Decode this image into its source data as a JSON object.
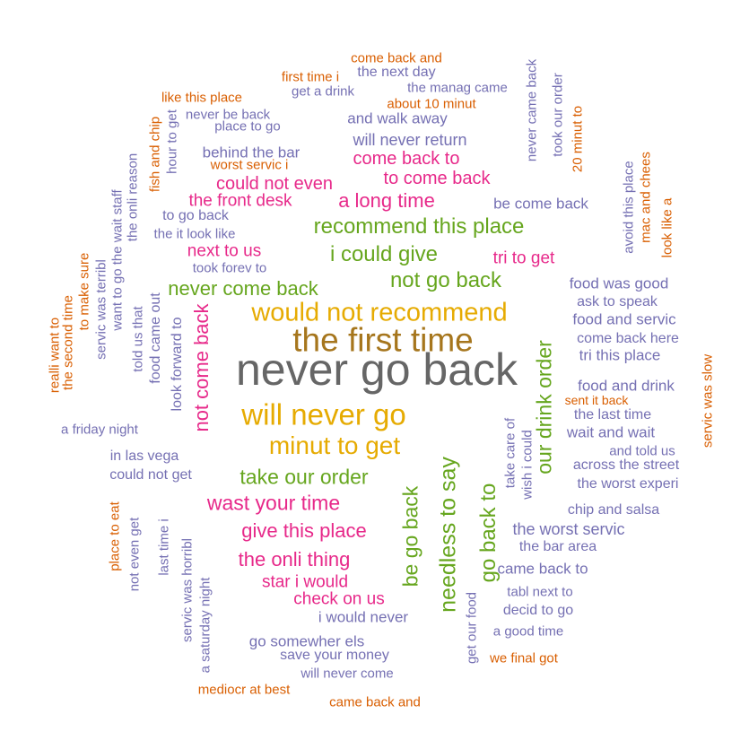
{
  "colors": {
    "gray": "#666666",
    "olive": "#a6761d",
    "gold": "#e6ab02",
    "green": "#66a61e",
    "pink": "#e7298a",
    "purple": "#7570b3",
    "orange": "#d95f02"
  },
  "words": [
    {
      "text": "never go back",
      "color": "gray"
    },
    {
      "text": "the first time",
      "color": "olive"
    },
    {
      "text": "will never go",
      "color": "gold"
    },
    {
      "text": "would not recommend",
      "color": "gold"
    },
    {
      "text": "minut to get",
      "color": "gold"
    },
    {
      "text": "needless to say",
      "color": "green"
    },
    {
      "text": "our drink order",
      "color": "green"
    },
    {
      "text": "go back to",
      "color": "green"
    },
    {
      "text": "be go back",
      "color": "green"
    },
    {
      "text": "take our order",
      "color": "green"
    },
    {
      "text": "recommend this place",
      "color": "green"
    },
    {
      "text": "i could give",
      "color": "green"
    },
    {
      "text": "not go back",
      "color": "green"
    },
    {
      "text": "never come back",
      "color": "green"
    },
    {
      "text": "not come back",
      "color": "pink"
    },
    {
      "text": "wast your time",
      "color": "pink"
    },
    {
      "text": "give this place",
      "color": "pink"
    },
    {
      "text": "the onli thing",
      "color": "pink"
    },
    {
      "text": "a long time",
      "color": "pink"
    },
    {
      "text": "could not even",
      "color": "pink"
    },
    {
      "text": "come back to",
      "color": "pink"
    },
    {
      "text": "to come back",
      "color": "pink"
    },
    {
      "text": "the front desk",
      "color": "pink"
    },
    {
      "text": "next to us",
      "color": "pink"
    },
    {
      "text": "tri to get",
      "color": "pink"
    },
    {
      "text": "star i would",
      "color": "pink"
    },
    {
      "text": "check on us",
      "color": "pink"
    },
    {
      "text": "will never return",
      "color": "purple"
    },
    {
      "text": "and walk away",
      "color": "purple"
    },
    {
      "text": "behind the bar",
      "color": "purple"
    },
    {
      "text": "be come back",
      "color": "purple"
    },
    {
      "text": "food was good",
      "color": "purple"
    },
    {
      "text": "ask to speak",
      "color": "purple"
    },
    {
      "text": "food and servic",
      "color": "purple"
    },
    {
      "text": "come back here",
      "color": "purple"
    },
    {
      "text": "tri this place",
      "color": "purple"
    },
    {
      "text": "food and drink",
      "color": "purple"
    },
    {
      "text": "the last time",
      "color": "purple"
    },
    {
      "text": "wait and wait",
      "color": "purple"
    },
    {
      "text": "and told us",
      "color": "purple"
    },
    {
      "text": "across the street",
      "color": "purple"
    },
    {
      "text": "the worst experi",
      "color": "purple"
    },
    {
      "text": "chip and salsa",
      "color": "purple"
    },
    {
      "text": "the worst servic",
      "color": "purple"
    },
    {
      "text": "the bar area",
      "color": "purple"
    },
    {
      "text": "came back to",
      "color": "purple"
    },
    {
      "text": "tabl next to",
      "color": "purple"
    },
    {
      "text": "decid to go",
      "color": "purple"
    },
    {
      "text": "a good time",
      "color": "purple"
    },
    {
      "text": "i would never",
      "color": "purple"
    },
    {
      "text": "go somewher els",
      "color": "purple"
    },
    {
      "text": "save your money",
      "color": "purple"
    },
    {
      "text": "will never come",
      "color": "purple"
    },
    {
      "text": "in las vega",
      "color": "purple"
    },
    {
      "text": "could not get",
      "color": "purple"
    },
    {
      "text": "a friday night",
      "color": "purple"
    },
    {
      "text": "to go back",
      "color": "purple"
    },
    {
      "text": "the it look like",
      "color": "purple"
    },
    {
      "text": "took forev to",
      "color": "purple"
    },
    {
      "text": "the next day",
      "color": "purple"
    },
    {
      "text": "get a drink",
      "color": "purple"
    },
    {
      "text": "the manag came",
      "color": "purple"
    },
    {
      "text": "never be back",
      "color": "purple"
    },
    {
      "text": "place to go",
      "color": "purple"
    },
    {
      "text": "look forward to",
      "color": "purple"
    },
    {
      "text": "food came out",
      "color": "purple"
    },
    {
      "text": "told us that",
      "color": "purple"
    },
    {
      "text": "want to go the wait staff",
      "color": "purple"
    },
    {
      "text": "servic was terribl",
      "color": "purple"
    },
    {
      "text": "the onli reason",
      "color": "purple"
    },
    {
      "text": "hour to get",
      "color": "purple"
    },
    {
      "text": "never came back",
      "color": "purple"
    },
    {
      "text": "took our order",
      "color": "purple"
    },
    {
      "text": "avoid this place",
      "color": "purple"
    },
    {
      "text": "take care of",
      "color": "purple"
    },
    {
      "text": "wish i could",
      "color": "purple"
    },
    {
      "text": "get our food",
      "color": "purple"
    },
    {
      "text": "servic was horribl",
      "color": "purple"
    },
    {
      "text": "a saturday night",
      "color": "purple"
    },
    {
      "text": "last time i",
      "color": "purple"
    },
    {
      "text": "not even get",
      "color": "purple"
    },
    {
      "text": "come back and",
      "color": "orange"
    },
    {
      "text": "first time i",
      "color": "orange"
    },
    {
      "text": "about 10 minut",
      "color": "orange"
    },
    {
      "text": "like this place",
      "color": "orange"
    },
    {
      "text": "worst servic i",
      "color": "orange"
    },
    {
      "text": "sent it back",
      "color": "orange"
    },
    {
      "text": "we final got",
      "color": "orange"
    },
    {
      "text": "mediocr at best",
      "color": "orange"
    },
    {
      "text": "came back and",
      "color": "orange"
    },
    {
      "text": "20 minut to",
      "color": "orange"
    },
    {
      "text": "mac and chees",
      "color": "orange"
    },
    {
      "text": "look like a",
      "color": "orange"
    },
    {
      "text": "servic was slow",
      "color": "orange"
    },
    {
      "text": "fish and chip",
      "color": "orange"
    },
    {
      "text": "to make sure",
      "color": "orange"
    },
    {
      "text": "the second time",
      "color": "orange"
    },
    {
      "text": "realli want to",
      "color": "orange"
    },
    {
      "text": "place to eat",
      "color": "orange"
    }
  ]
}
